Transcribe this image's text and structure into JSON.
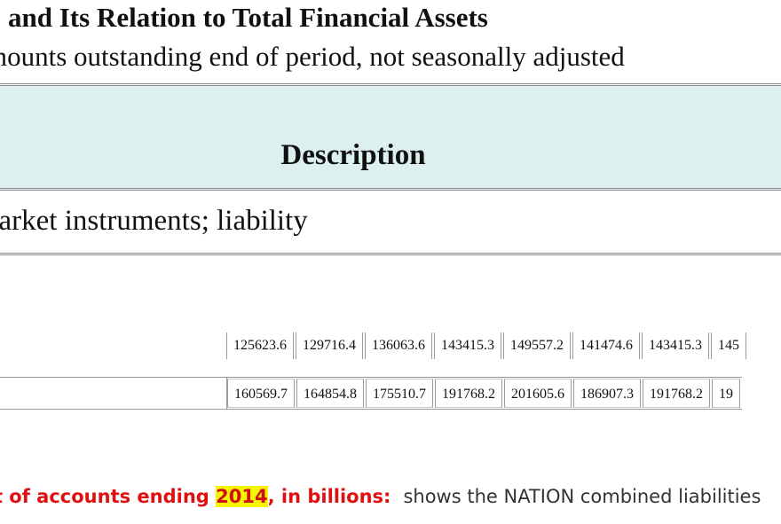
{
  "heading": {
    "title": "and Its Relation to Total Financial Assets",
    "subtitle": "mounts outstanding end of period, not seasonally adjusted"
  },
  "description_table": {
    "header": "Description",
    "body": "narket instruments; liability"
  },
  "data_rows": [
    {
      "cells": [
        "125623.6",
        "129716.4",
        "136063.6",
        "143415.3",
        "149557.2",
        "141474.6",
        "143415.3",
        "145"
      ]
    },
    {
      "cells": [
        "160569.7",
        "164854.8",
        "175510.7",
        "191768.2",
        "201605.6",
        "186907.3",
        "191768.2",
        "19"
      ]
    }
  ],
  "annotation": {
    "label_start": "nt of accounts ending ",
    "year": "2014",
    "label_end": ", in billions:",
    "text": "shows the NATION combined liabilities"
  },
  "colors": {
    "header_background": "#dcf0ef",
    "annotation_label": "#e01010",
    "highlight": "#f5f500"
  }
}
